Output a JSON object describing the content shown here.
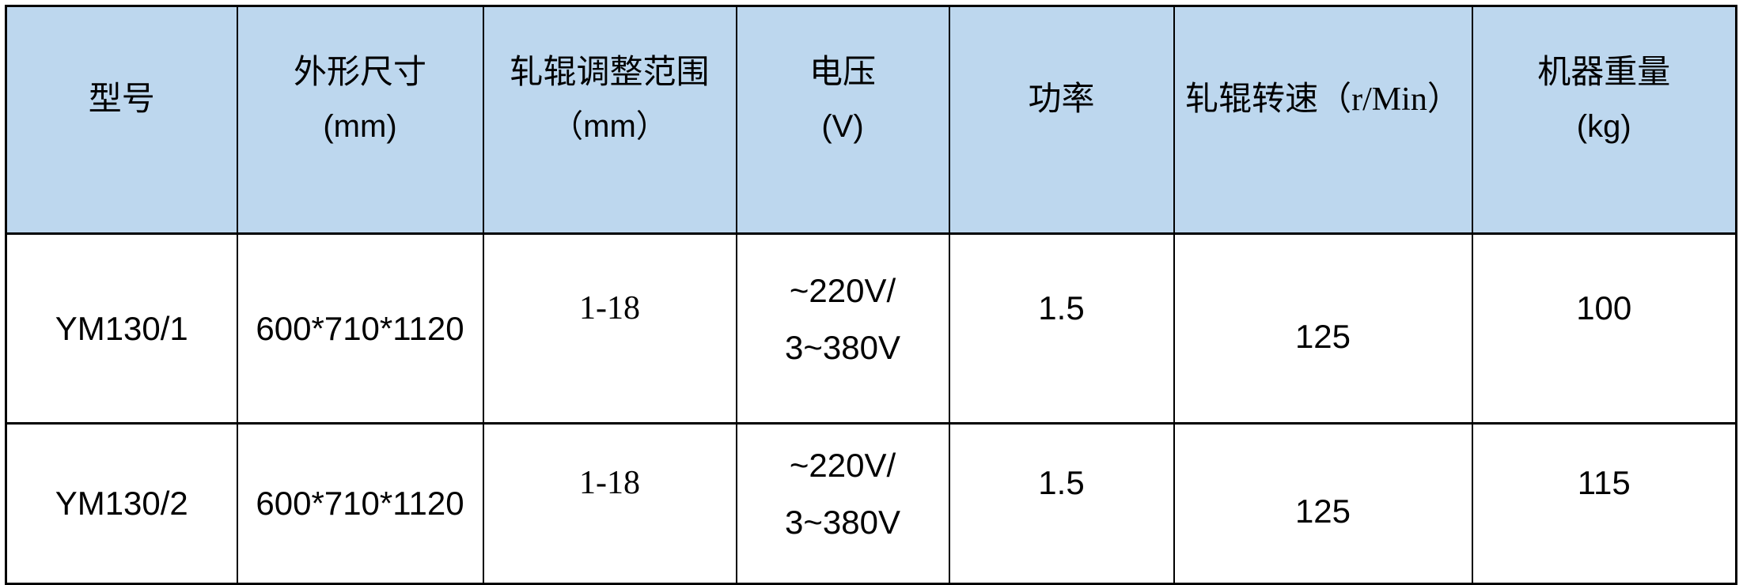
{
  "colors": {
    "header_bg": "#BDD7EE",
    "border_color": "#000000"
  },
  "table": {
    "columns": [
      {
        "id": "model",
        "lines": [
          "型号"
        ]
      },
      {
        "id": "dimensions",
        "lines": [
          "外形尺寸",
          "(mm)"
        ]
      },
      {
        "id": "roller_range",
        "lines": [
          "轧辊调整范围",
          "（mm）"
        ]
      },
      {
        "id": "voltage",
        "lines": [
          "电压",
          "(V)"
        ]
      },
      {
        "id": "power",
        "lines": [
          "功率"
        ]
      },
      {
        "id": "roller_speed",
        "lines": [
          "轧辊转速（r/Min）"
        ]
      },
      {
        "id": "machine_weight",
        "lines": [
          "机器重量",
          "(kg)"
        ]
      }
    ],
    "rows": [
      {
        "model": "YM130/1",
        "dimensions": "600*710*1120",
        "roller_range": "1-18",
        "voltage_lines": [
          "~220V/",
          "3~380V"
        ],
        "power": "1.5",
        "roller_speed": "125",
        "machine_weight": "100"
      },
      {
        "model": "YM130/2",
        "dimensions": "600*710*1120",
        "roller_range": "1-18",
        "voltage_lines": [
          "~220V/",
          "3~380V"
        ],
        "power": "1.5",
        "roller_speed": "125",
        "machine_weight": "115"
      }
    ]
  }
}
